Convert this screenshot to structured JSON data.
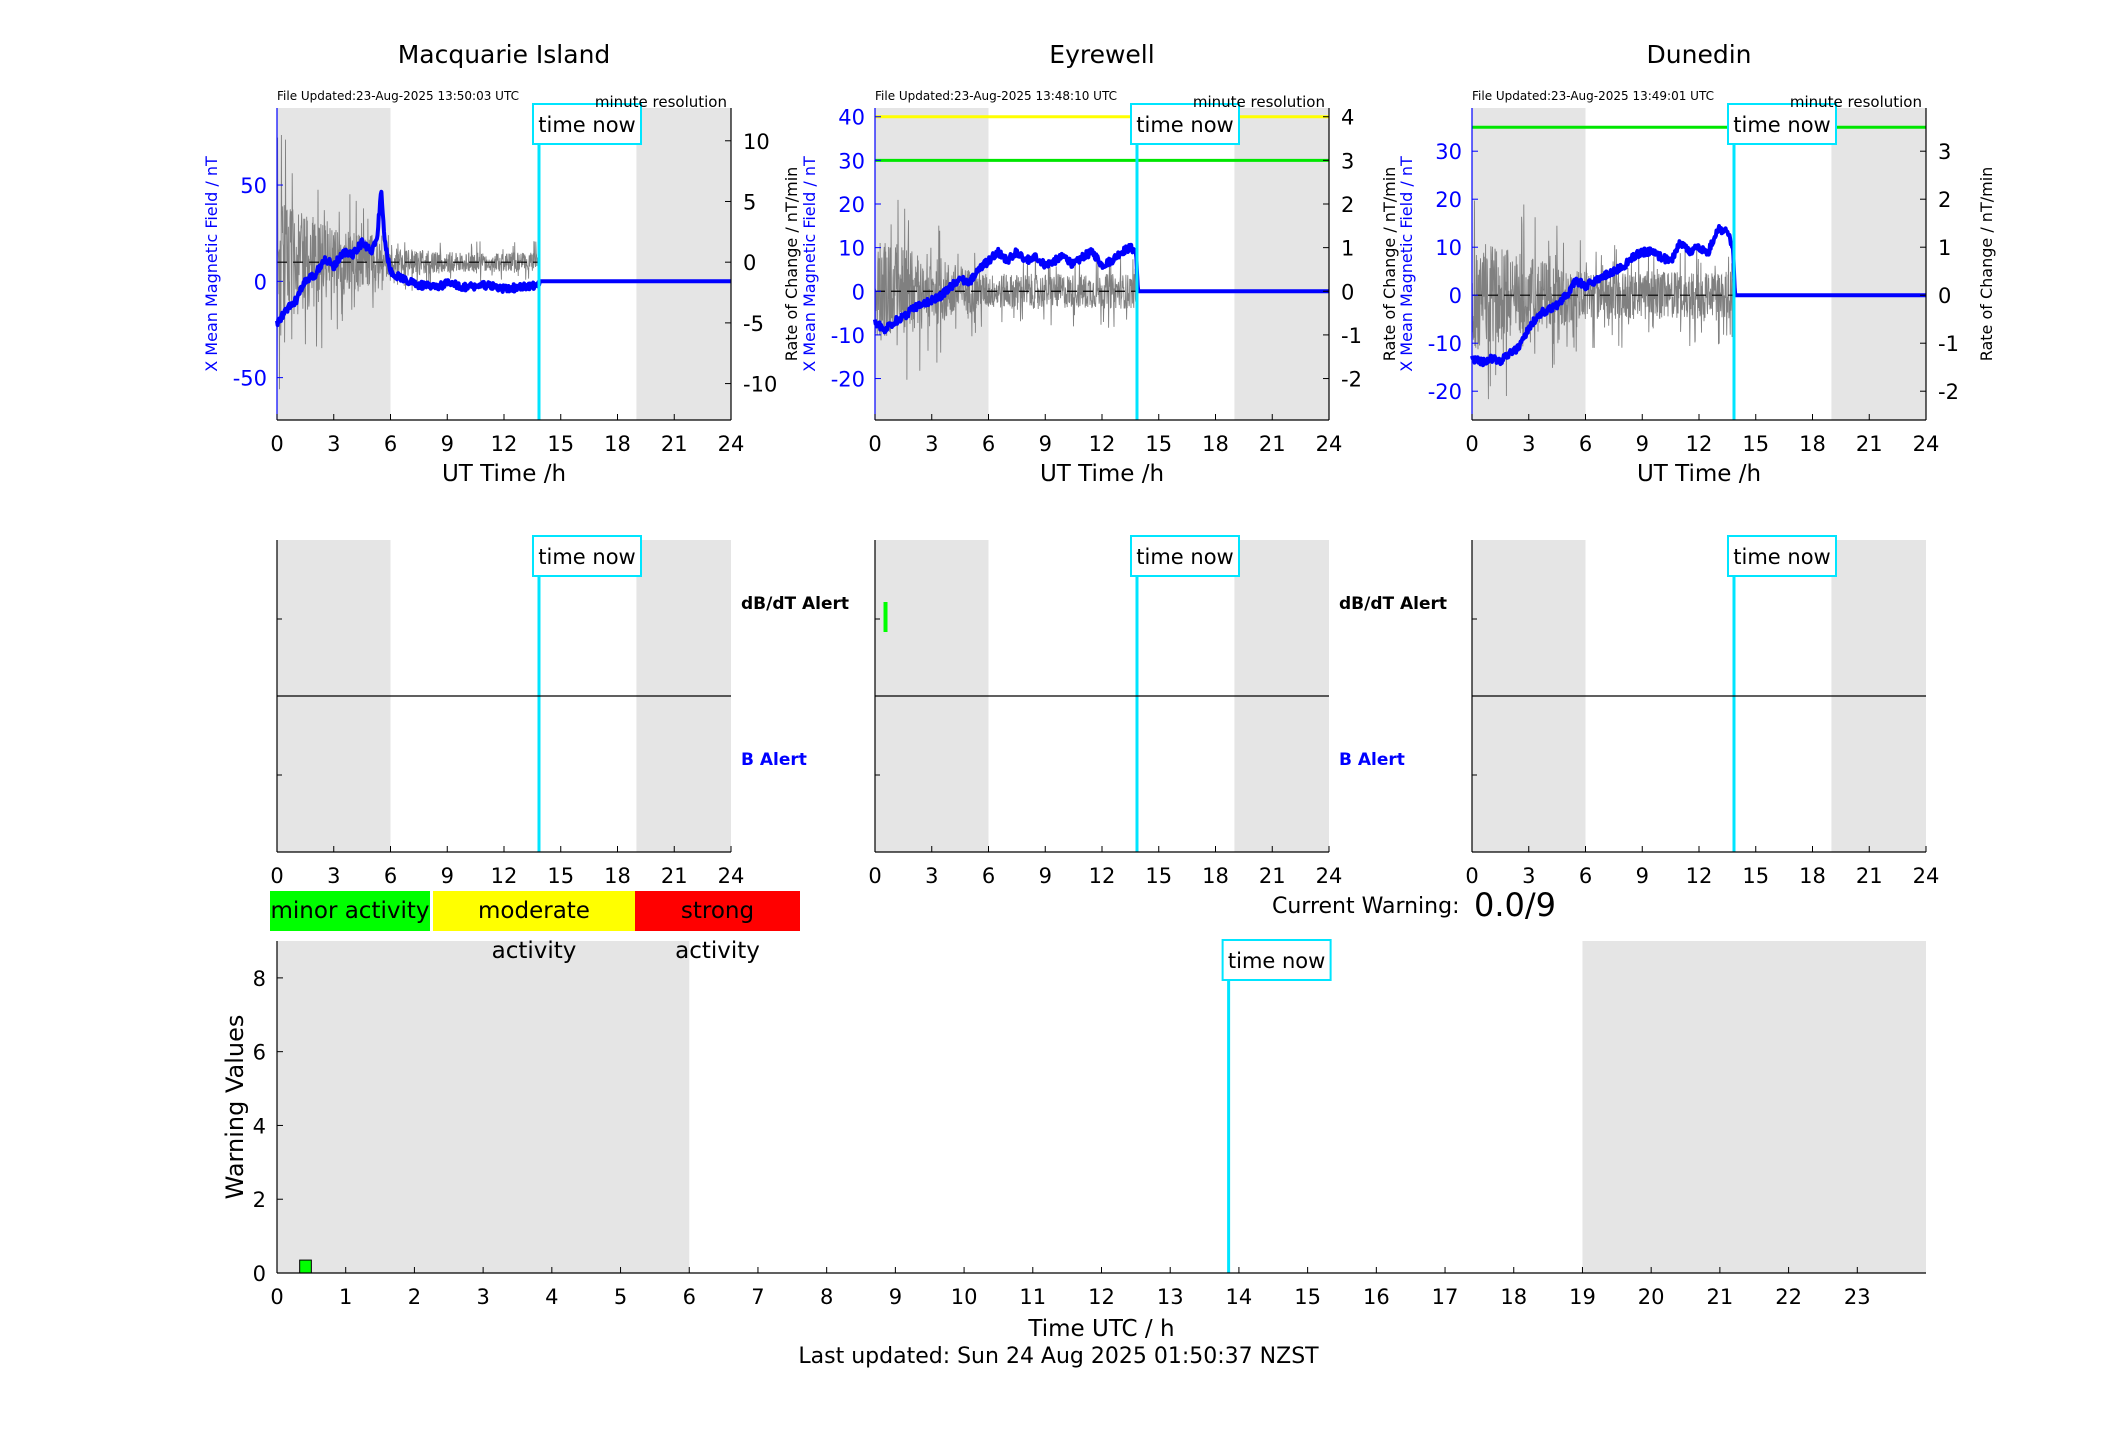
{
  "colors": {
    "night_shade": "#e5e5e5",
    "time_now": "#00e5ff",
    "field": "#0000ff",
    "rate": "#808080",
    "minor": "#00ff00",
    "moderate": "#ffff00",
    "strong": "#ff0000"
  },
  "common": {
    "time_now_label": "time now",
    "x_axis_label": "UT Time /h",
    "resolution_label": "minute resolution",
    "left_axis_label": "X Mean Magnetic Field / nT",
    "right_axis_label": "Rate of Change / nT/min",
    "dbdt_alert_label": "dB/dT Alert",
    "b_alert_label": "B Alert"
  },
  "legend": {
    "minor": "minor activity",
    "moderate": "moderate activity",
    "strong": "strong activity"
  },
  "current_warning": {
    "label": "Current Warning:",
    "value": "0.0/9"
  },
  "footer": "Last updated: Sun 24 Aug 2025 01:50:37 NZST",
  "chart_data": [
    {
      "type": "line",
      "title": "Macquarie Island",
      "file_updated": "File Updated:23-Aug-2025 13:50:03 UTC",
      "xlabel": "UT Time /h",
      "ylabel": "X Mean Magnetic Field / nT",
      "y2label": "Rate of Change / nT/min",
      "xlim": [
        0,
        24
      ],
      "xticks": [
        0,
        3,
        6,
        9,
        12,
        15,
        18,
        21,
        24
      ],
      "ylim": [
        -72,
        90
      ],
      "yticks": [
        -50,
        0,
        50
      ],
      "y2lim": [
        -13,
        12.7
      ],
      "y2ticks": [
        -10,
        -5,
        0,
        5,
        10
      ],
      "shaded_x": [
        [
          0,
          6
        ],
        [
          19,
          24
        ]
      ],
      "time_now": 13.85,
      "threshold_lines": [],
      "field_keypoints": [
        [
          0,
          -22
        ],
        [
          0.5,
          -15
        ],
        [
          1,
          -10
        ],
        [
          1.5,
          0
        ],
        [
          2,
          3
        ],
        [
          2.5,
          12
        ],
        [
          3,
          8
        ],
        [
          3.5,
          15
        ],
        [
          4,
          14
        ],
        [
          4.5,
          20
        ],
        [
          5,
          16
        ],
        [
          5.3,
          22
        ],
        [
          5.5,
          48
        ],
        [
          5.7,
          20
        ],
        [
          6,
          5
        ],
        [
          6.5,
          2
        ],
        [
          7.5,
          -2
        ],
        [
          8.5,
          -3
        ],
        [
          9,
          -1
        ],
        [
          10,
          -3
        ],
        [
          11,
          -2
        ],
        [
          12,
          -4
        ],
        [
          13,
          -3
        ],
        [
          13.85,
          -2
        ],
        [
          13.9,
          0
        ],
        [
          24,
          0
        ]
      ],
      "rate_amplitude": [
        [
          0,
          5
        ],
        [
          6,
          1.2
        ],
        [
          10,
          0.8
        ],
        [
          13.85,
          0.8
        ]
      ],
      "dbdt_alerts": [],
      "b_alerts": []
    },
    {
      "type": "line",
      "title": "Eyrewell",
      "file_updated": "File Updated:23-Aug-2025 13:48:10 UTC",
      "xlabel": "UT Time /h",
      "ylabel": "X Mean Magnetic Field / nT",
      "y2label": "Rate of Change / nT/min",
      "xlim": [
        0,
        24
      ],
      "xticks": [
        0,
        3,
        6,
        9,
        12,
        15,
        18,
        21,
        24
      ],
      "ylim": [
        -29.5,
        42
      ],
      "yticks": [
        -20,
        -10,
        0,
        10,
        20,
        30,
        40
      ],
      "y2lim": [
        -2.95,
        4.2
      ],
      "y2ticks": [
        -2,
        -1,
        0,
        1,
        2,
        3,
        4
      ],
      "shaded_x": [
        [
          0,
          6
        ],
        [
          19,
          24
        ]
      ],
      "time_now": 13.85,
      "threshold_lines": [
        {
          "value": 40,
          "color": "#ffff00"
        },
        {
          "value": 30,
          "color": "#00e600"
        }
      ],
      "field_keypoints": [
        [
          0,
          -7
        ],
        [
          0.5,
          -9
        ],
        [
          1,
          -7
        ],
        [
          1.5,
          -6
        ],
        [
          2,
          -4
        ],
        [
          2.5,
          -3
        ],
        [
          3,
          -2
        ],
        [
          3.5,
          -1
        ],
        [
          4,
          1
        ],
        [
          4.5,
          3
        ],
        [
          5,
          2
        ],
        [
          5.5,
          5
        ],
        [
          6,
          7
        ],
        [
          6.5,
          9
        ],
        [
          7,
          7
        ],
        [
          7.5,
          9
        ],
        [
          8,
          7
        ],
        [
          8.5,
          8
        ],
        [
          9,
          6
        ],
        [
          9.5,
          7
        ],
        [
          10,
          8
        ],
        [
          10.5,
          6
        ],
        [
          11,
          8
        ],
        [
          11.5,
          9
        ],
        [
          12,
          6
        ],
        [
          12.5,
          7
        ],
        [
          13,
          9
        ],
        [
          13.5,
          10
        ],
        [
          13.8,
          9
        ],
        [
          13.9,
          0
        ],
        [
          24,
          0
        ]
      ],
      "rate_amplitude": [
        [
          0,
          1.2
        ],
        [
          6,
          0.4
        ],
        [
          13.85,
          0.4
        ]
      ],
      "dbdt_alerts": [
        [
          0.45,
          0.6
        ]
      ],
      "b_alerts": []
    },
    {
      "type": "line",
      "title": "Dunedin",
      "file_updated": "File Updated:23-Aug-2025 13:49:01 UTC",
      "xlabel": "UT Time /h",
      "ylabel": "X Mean Magnetic Field / nT",
      "y2label": "Rate of Change / nT/min",
      "xlim": [
        0,
        24
      ],
      "xticks": [
        0,
        3,
        6,
        9,
        12,
        15,
        18,
        21,
        24
      ],
      "ylim": [
        -26,
        39
      ],
      "yticks": [
        -20,
        -10,
        0,
        10,
        20,
        30
      ],
      "y2lim": [
        -2.6,
        3.9
      ],
      "y2ticks": [
        -2,
        -1,
        0,
        1,
        2,
        3
      ],
      "shaded_x": [
        [
          0,
          6
        ],
        [
          19,
          24
        ]
      ],
      "time_now": 13.85,
      "threshold_lines": [
        {
          "value": 35,
          "color": "#00e600"
        }
      ],
      "field_keypoints": [
        [
          0,
          -13
        ],
        [
          0.5,
          -14
        ],
        [
          1,
          -13
        ],
        [
          1.5,
          -14
        ],
        [
          2,
          -12
        ],
        [
          2.5,
          -11
        ],
        [
          3,
          -7
        ],
        [
          3.5,
          -4
        ],
        [
          4,
          -3
        ],
        [
          4.5,
          -2
        ],
        [
          5,
          0
        ],
        [
          5.5,
          3
        ],
        [
          6,
          2
        ],
        [
          6.5,
          3
        ],
        [
          7,
          4
        ],
        [
          7.5,
          5
        ],
        [
          8,
          6
        ],
        [
          8.5,
          8
        ],
        [
          9,
          9
        ],
        [
          9.5,
          9
        ],
        [
          10,
          8
        ],
        [
          10.5,
          7
        ],
        [
          11,
          11
        ],
        [
          11.5,
          9
        ],
        [
          12,
          10
        ],
        [
          12.5,
          9
        ],
        [
          13,
          14
        ],
        [
          13.5,
          13
        ],
        [
          13.8,
          10
        ],
        [
          13.9,
          0
        ],
        [
          24,
          0
        ]
      ],
      "rate_amplitude": [
        [
          0,
          1.2
        ],
        [
          6,
          0.5
        ],
        [
          13.85,
          0.5
        ]
      ],
      "dbdt_alerts": [],
      "b_alerts": []
    },
    {
      "type": "bar",
      "xlabel": "Time UTC / h",
      "ylabel": "Warning Values",
      "xlim": [
        0,
        24
      ],
      "xticks": [
        0,
        1,
        2,
        3,
        4,
        5,
        6,
        7,
        8,
        9,
        10,
        11,
        12,
        13,
        14,
        15,
        16,
        17,
        18,
        19,
        20,
        21,
        22,
        23
      ],
      "ylim": [
        0,
        9
      ],
      "yticks": [
        0,
        2,
        4,
        6,
        8
      ],
      "shaded_x": [
        [
          0,
          6
        ],
        [
          19,
          24
        ]
      ],
      "time_now": 13.85,
      "bars": [
        {
          "x0": 0.33,
          "x1": 0.5,
          "value": 0.35,
          "color": "#00ff00"
        }
      ]
    }
  ]
}
